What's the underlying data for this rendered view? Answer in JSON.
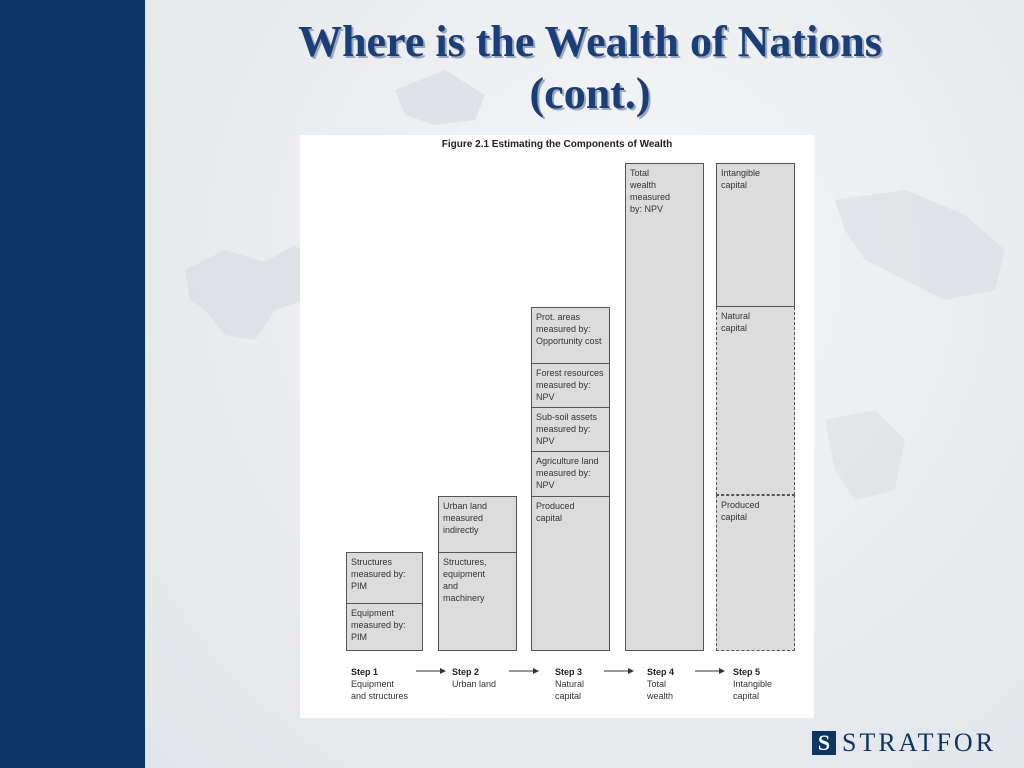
{
  "slide": {
    "title_line1": "Where is the Wealth of Nations",
    "title_line2": "(cont.)",
    "accent_color": "#0b3565",
    "title_color": "#1a3e78"
  },
  "figure": {
    "title": "Figure 2.1  Estimating the Components of Wealth",
    "bars": [
      {
        "step": "Step 1",
        "step_desc": "Equipment\nand structures",
        "segments": [
          {
            "text": "Structures\nmeasured by:\nPIM"
          },
          {
            "text": "Equipment\nmeasured by:\nPIM"
          }
        ]
      },
      {
        "step": "Step 2",
        "step_desc": "Urban land",
        "segments": [
          {
            "text": "Urban land\nmeasured\nindirectly"
          },
          {
            "text": "Structures,\nequipment\nand\nmachinery"
          }
        ]
      },
      {
        "step": "Step 3",
        "step_desc": "Natural\ncapital",
        "segments": [
          {
            "text": "Prot. areas\nmeasured by:\nOpportunity cost"
          },
          {
            "text": "Forest resources\nmeasured by:\nNPV"
          },
          {
            "text": "Sub-soil assets\nmeasured by:\nNPV"
          },
          {
            "text": "Agriculture land\nmeasured by:\nNPV"
          },
          {
            "text": "Produced\ncapital"
          }
        ]
      },
      {
        "step": "Step 4",
        "step_desc": "Total\nwealth",
        "segments": [
          {
            "text": "Total\nwealth\nmeasured\nby: NPV"
          }
        ]
      },
      {
        "step": "Step 5",
        "step_desc": "Intangible\ncapital",
        "segments": [
          {
            "text": "Intangible\ncapital"
          },
          {
            "text": "Natural\ncapital"
          },
          {
            "text": "Produced\ncapital"
          }
        ]
      }
    ]
  },
  "logo": {
    "mark": "S",
    "text": "STRATFOR"
  }
}
